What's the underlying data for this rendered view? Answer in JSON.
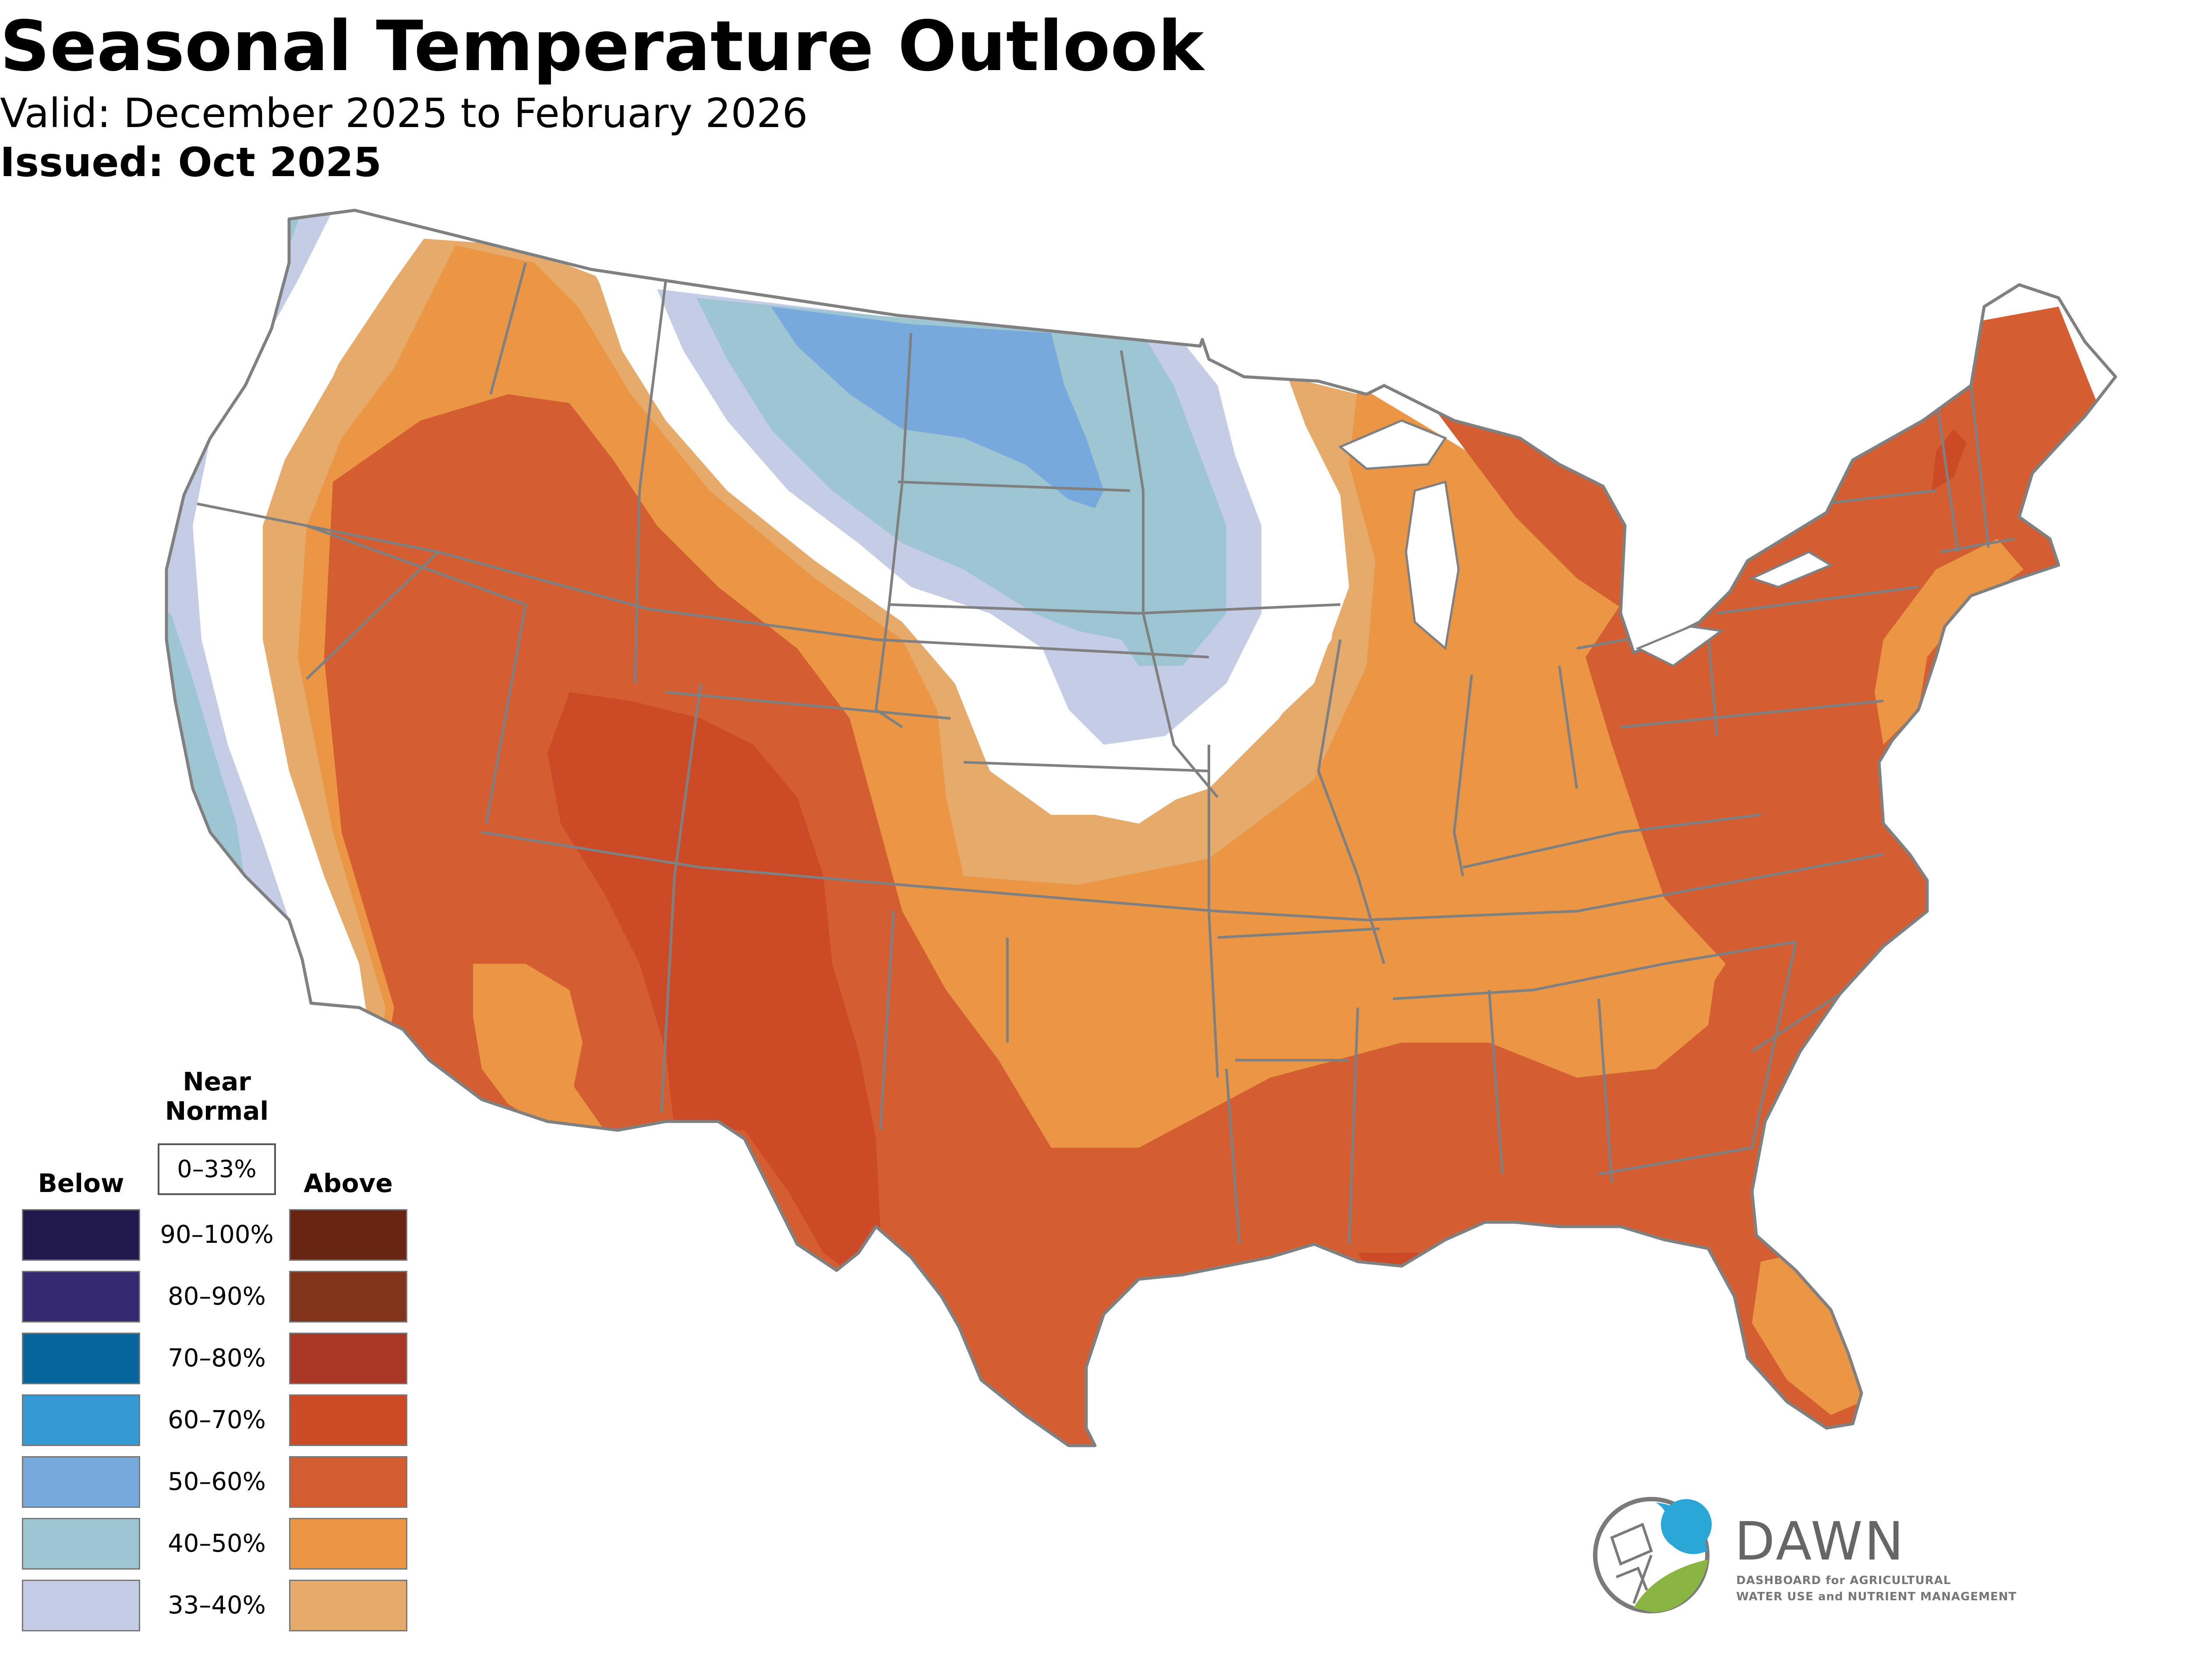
{
  "header": {
    "title": "Seasonal Temperature Outlook",
    "valid": "Valid: December 2025 to February 2026",
    "issued": "Issued: Oct 2025"
  },
  "legend": {
    "below_heading": "Below",
    "near_normal_heading": "Near Normal",
    "near_normal_range": "0–33%",
    "above_heading": "Above",
    "rows": [
      {
        "range": "90–100%",
        "below_color": "#221a4f",
        "above_color": "#672512"
      },
      {
        "range": "80–90%",
        "below_color": "#352a72",
        "above_color": "#82341b"
      },
      {
        "range": "70–80%",
        "below_color": "#06659c",
        "above_color": "#a83725"
      },
      {
        "range": "60–70%",
        "below_color": "#359ad4",
        "above_color": "#cc4a25"
      },
      {
        "range": "50–60%",
        "below_color": "#78a9dc",
        "above_color": "#d45e32"
      },
      {
        "range": "40–50%",
        "below_color": "#9ec5d2",
        "above_color": "#eb9645"
      },
      {
        "range": "33–40%",
        "below_color": "#c5cce6",
        "above_color": "#e6aa6a"
      }
    ]
  },
  "map": {
    "region": "Contiguous United States",
    "state_border_color": "#808080"
  },
  "logo": {
    "name": "DAWN",
    "tagline_line1": "DASHBOARD for AGRICULTURAL",
    "tagline_line2": "WATER USE and NUTRIENT MANAGEMENT",
    "colors": {
      "blue": "#2aa7d6",
      "green": "#8bb543",
      "gray": "#7a7a7a"
    }
  }
}
